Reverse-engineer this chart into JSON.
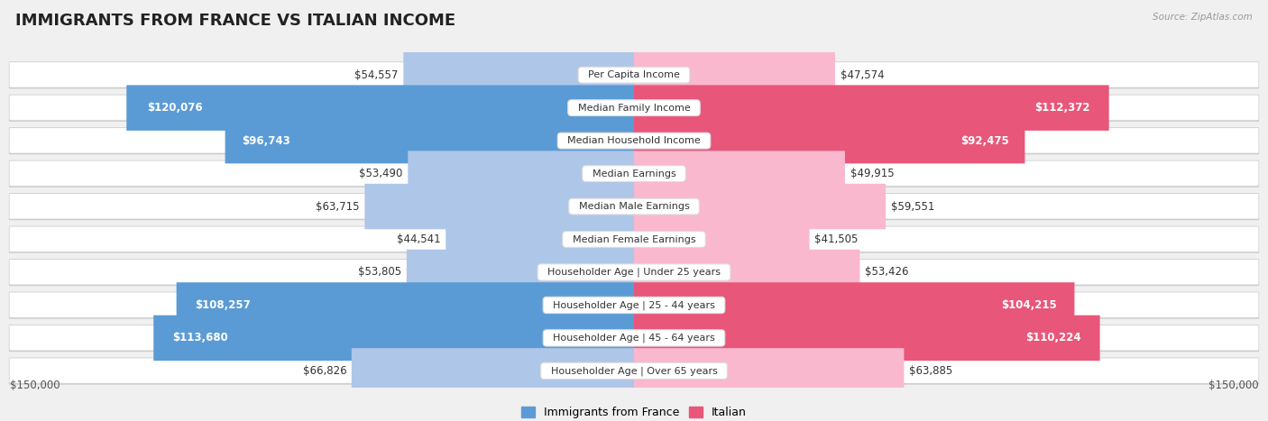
{
  "title": "IMMIGRANTS FROM FRANCE VS ITALIAN INCOME",
  "source": "Source: ZipAtlas.com",
  "categories": [
    "Per Capita Income",
    "Median Family Income",
    "Median Household Income",
    "Median Earnings",
    "Median Male Earnings",
    "Median Female Earnings",
    "Householder Age | Under 25 years",
    "Householder Age | 25 - 44 years",
    "Householder Age | 45 - 64 years",
    "Householder Age | Over 65 years"
  ],
  "france_values": [
    54557,
    120076,
    96743,
    53490,
    63715,
    44541,
    53805,
    108257,
    113680,
    66826
  ],
  "italian_values": [
    47574,
    112372,
    92475,
    49915,
    59551,
    41505,
    53426,
    104215,
    110224,
    63885
  ],
  "france_labels": [
    "$54,557",
    "$120,076",
    "$96,743",
    "$53,490",
    "$63,715",
    "$44,541",
    "$53,805",
    "$108,257",
    "$113,680",
    "$66,826"
  ],
  "italian_labels": [
    "$47,574",
    "$112,372",
    "$92,475",
    "$49,915",
    "$59,551",
    "$41,505",
    "$53,426",
    "$104,215",
    "$110,224",
    "$63,885"
  ],
  "france_color_light": "#aec6e8",
  "france_color_dark": "#5b9bd5",
  "italian_color_light": "#f9b8ce",
  "italian_color_dark": "#e8567a",
  "text_threshold": 80000,
  "max_value": 150000,
  "xlabel_left": "$150,000",
  "xlabel_right": "$150,000",
  "legend_france": "Immigrants from France",
  "legend_italian": "Italian",
  "background_color": "#f0f0f0",
  "row_bg_color": "#ffffff",
  "title_fontsize": 13,
  "value_fontsize": 8.5,
  "category_fontsize": 8
}
